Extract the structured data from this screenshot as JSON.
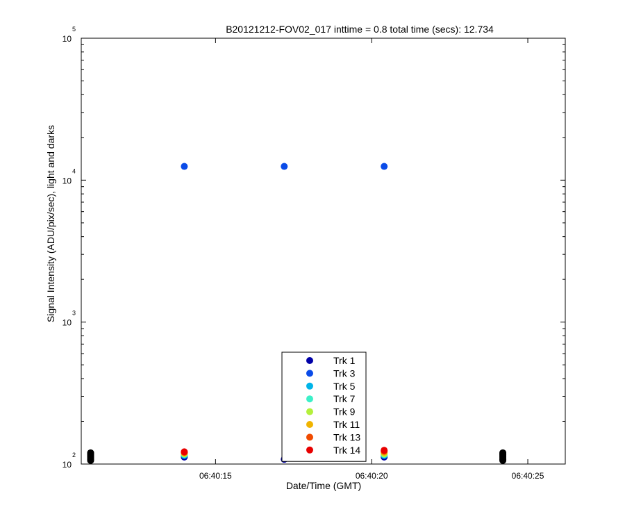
{
  "chart_data": {
    "type": "scatter",
    "title": "B20121212-FOV02_017 inttime = 0.8 total time (secs): 12.734",
    "xlabel": "Date/Time (GMT)",
    "ylabel": "Signal Intensity (ADU/pix/sec), light and darks",
    "x_unit": "seconds past 06:40:00",
    "xlim": [
      10.7,
      26.2
    ],
    "xticks": [
      15,
      20,
      25
    ],
    "xtick_labels": [
      "06:40:15",
      "06:40:20",
      "06:40:25"
    ],
    "yscale": "log",
    "ylim": [
      100,
      100000
    ],
    "yticks": [
      {
        "value": 100,
        "base": "10",
        "exp": "2"
      },
      {
        "value": 1000,
        "base": "10",
        "exp": "3"
      },
      {
        "value": 10000,
        "base": "10",
        "exp": "4"
      },
      {
        "value": 100000,
        "base": "10",
        "exp": "5"
      }
    ],
    "grid": false,
    "legend_position": "bottom-center",
    "series": [
      {
        "name": "Trk 1",
        "color": "#0000a8",
        "x": [
          14.0,
          17.2,
          20.4
        ],
        "y": [
          112,
          108,
          112
        ]
      },
      {
        "name": "Trk 3",
        "color": "#0a4be8",
        "x": [
          14.0,
          17.2,
          20.4
        ],
        "y": [
          12500,
          12500,
          12500
        ]
      },
      {
        "name": "Trk 5",
        "color": "#00b4e8",
        "x": [
          14.0,
          20.4
        ],
        "y": [
          115,
          115
        ]
      },
      {
        "name": "Trk 7",
        "color": "#3cf0c8",
        "x": [
          14.0,
          20.4
        ],
        "y": [
          117,
          117
        ]
      },
      {
        "name": "Trk 9",
        "color": "#b4f03c",
        "x": [
          14.0,
          20.4
        ],
        "y": [
          118,
          118
        ]
      },
      {
        "name": "Trk 11",
        "color": "#f0b400",
        "x": [
          14.0,
          20.4
        ],
        "y": [
          120,
          121
        ]
      },
      {
        "name": "Trk 13",
        "color": "#f04b00",
        "x": [
          14.0,
          20.4
        ],
        "y": [
          121,
          123
        ]
      },
      {
        "name": "Trk 14",
        "color": "#e80000",
        "x": [
          14.0,
          20.4
        ],
        "y": [
          122,
          125
        ]
      }
    ],
    "darks": {
      "color": "#000000",
      "x": [
        11.0,
        11.0,
        11.0,
        11.0,
        11.0,
        11.0,
        11.0,
        11.0,
        24.2,
        24.2,
        24.2,
        24.2,
        24.2,
        24.2,
        24.2,
        24.2
      ],
      "y": [
        106,
        108,
        110,
        112,
        114,
        116,
        118,
        120,
        106,
        108,
        110,
        112,
        114,
        116,
        118,
        120
      ]
    }
  }
}
